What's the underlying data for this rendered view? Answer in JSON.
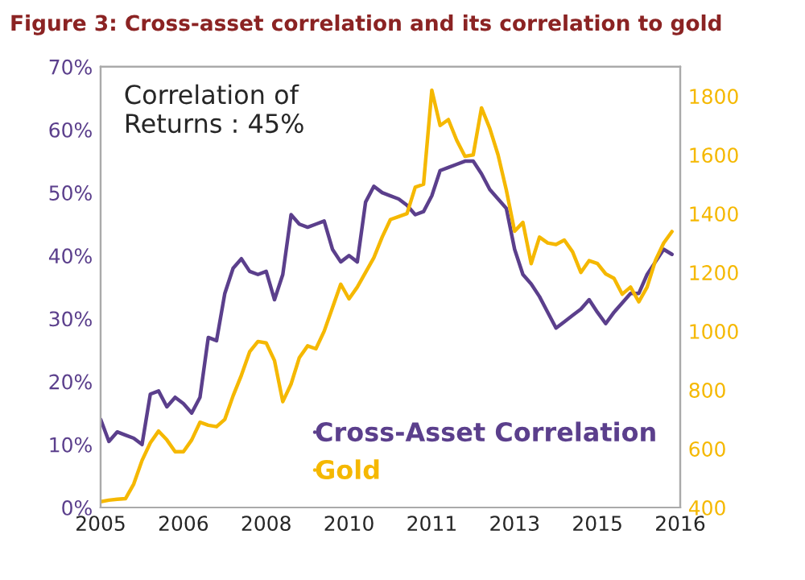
{
  "chart_data": {
    "type": "line",
    "title": "Figure 3: Cross-asset correlation and its correlation to gold",
    "annotations": [
      "Correlation of\nReturns : 45%"
    ],
    "categories": [
      "2005",
      null,
      null,
      null,
      null,
      null,
      null,
      null,
      null,
      null,
      "2006",
      null,
      null,
      null,
      null,
      null,
      null,
      null,
      null,
      null,
      "2008",
      null,
      null,
      null,
      null,
      null,
      null,
      null,
      null,
      null,
      "2010",
      null,
      null,
      null,
      null,
      null,
      null,
      null,
      null,
      null,
      "2011",
      null,
      null,
      null,
      null,
      null,
      null,
      null,
      null,
      null,
      "2013",
      null,
      null,
      null,
      null,
      null,
      null,
      null,
      null,
      null,
      "2015",
      null,
      null,
      null,
      null,
      null,
      null,
      null,
      null,
      null,
      "2016"
    ],
    "ylim": [
      0,
      70
    ],
    "yticks": [
      {
        "value": 0,
        "label": "0%"
      },
      {
        "value": 10,
        "label": "10%"
      },
      {
        "value": 20,
        "label": "20%"
      },
      {
        "value": 30,
        "label": "30%"
      },
      {
        "value": 40,
        "label": "40%"
      },
      {
        "value": 50,
        "label": "50%"
      },
      {
        "value": 60,
        "label": "60%"
      },
      {
        "value": 70,
        "label": "70%"
      }
    ],
    "y2lim": [
      400,
      1900
    ],
    "y2ticks": [
      400,
      600,
      800,
      1000,
      1200,
      1400,
      1600,
      1800
    ],
    "legend": "bottom right",
    "series": [
      {
        "name": "Cross-Asset Correlation",
        "color": "#5b3f8c",
        "values": [
          14,
          10.5,
          12,
          11.5,
          11,
          10,
          18,
          18.5,
          16,
          17.5,
          16.5,
          15,
          17.5,
          27,
          26.5,
          34,
          38,
          39.5,
          37.5,
          37,
          37.5,
          33,
          37,
          46.5,
          45,
          44.5,
          45,
          45.5,
          41,
          39,
          40,
          39,
          48.5,
          51,
          50,
          49.5,
          49,
          48,
          46.5,
          47,
          49.5,
          53.5,
          54,
          54.5,
          55,
          55,
          53,
          50.5,
          49,
          47.5,
          41,
          37,
          35.5,
          33.5,
          31,
          28.5,
          29.5,
          30.5,
          31.5,
          33,
          31,
          29.2,
          31,
          32.5,
          34,
          34,
          37,
          39,
          41,
          40.2,
          null
        ]
      },
      {
        "name": "Gold",
        "color": "#f5b800",
        "axis": "y2",
        "values": [
          420,
          425,
          428,
          430,
          480,
          560,
          620,
          660,
          630,
          590,
          590,
          630,
          690,
          680,
          675,
          700,
          780,
          850,
          930,
          965,
          960,
          900,
          760,
          820,
          910,
          950,
          940,
          1000,
          1080,
          1160,
          1110,
          1150,
          1200,
          1250,
          1320,
          1380,
          1390,
          1400,
          1490,
          1500,
          1820,
          1700,
          1720,
          1650,
          1595,
          1600,
          1760,
          1690,
          1600,
          1480,
          1340,
          1370,
          1230,
          1320,
          1300,
          1295,
          1310,
          1270,
          1200,
          1240,
          1230,
          1195,
          1180,
          1126,
          1150,
          1100,
          1150,
          1240,
          1300,
          1339,
          null
        ]
      }
    ]
  }
}
